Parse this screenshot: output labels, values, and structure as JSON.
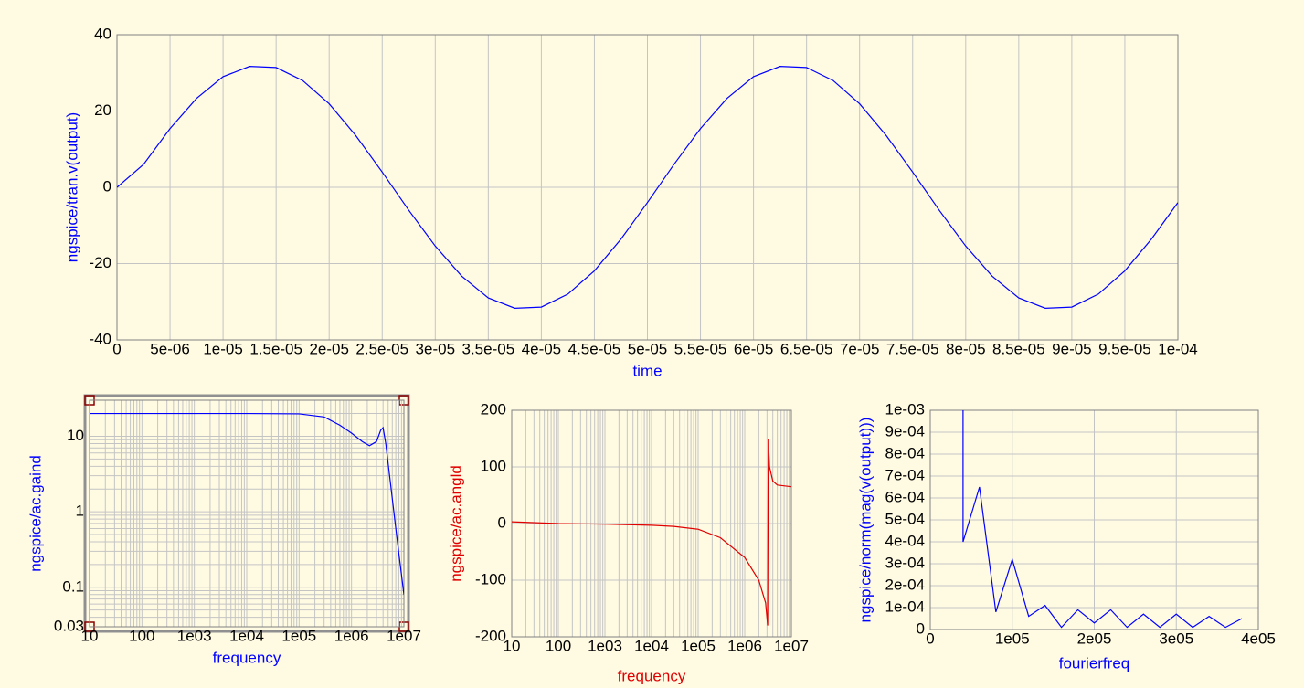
{
  "chart_data": [
    {
      "type": "line",
      "xlabel": "time",
      "ylabel": "ngspice/tran.v(output)",
      "color": "#0000ff",
      "x": [
        0,
        2.5e-06,
        5e-06,
        7.5e-06,
        1e-05,
        1.25e-05,
        1.5e-05,
        1.75e-05,
        2e-05,
        2.25e-05,
        2.5e-05,
        2.75e-05,
        3e-05,
        3.25e-05,
        3.5e-05,
        3.75e-05,
        4e-05,
        4.25e-05,
        4.5e-05,
        4.75e-05,
        5e-05,
        5.25e-05,
        5.5e-05,
        5.75e-05,
        6e-05,
        6.25e-05,
        6.5e-05,
        6.75e-05,
        7e-05,
        7.25e-05,
        7.5e-05,
        7.75e-05,
        8e-05,
        8.25e-05,
        8.5e-05,
        8.75e-05,
        9e-05,
        9.25e-05,
        9.5e-05,
        9.75e-05,
        0.0001
      ],
      "values": [
        0,
        6.0,
        15.4,
        23.3,
        29.0,
        31.7,
        31.4,
        28.0,
        21.9,
        13.6,
        4.0,
        -6.0,
        -15.4,
        -23.3,
        -29.0,
        -31.7,
        -31.4,
        -28.0,
        -21.9,
        -13.6,
        -4.0,
        6.0,
        15.4,
        23.3,
        29.0,
        31.7,
        31.4,
        28.0,
        21.9,
        13.6,
        4.0,
        -6.0,
        -15.4,
        -23.3,
        -29.0,
        -31.7,
        -31.4,
        -28.0,
        -21.9,
        -13.6,
        -4.0
      ],
      "xlim": [
        0,
        0.0001
      ],
      "xticks": [
        0,
        {
          "value": 5e-06,
          "label": "5e-06"
        },
        {
          "value": 1e-05,
          "label": "1e-05"
        },
        {
          "value": 1.5e-05,
          "label": "1.5e-05"
        },
        {
          "value": 2e-05,
          "label": "2e-05"
        },
        {
          "value": 2.5e-05,
          "label": "2.5e-05"
        },
        {
          "value": 3e-05,
          "label": "3e-05"
        },
        {
          "value": 3.5e-05,
          "label": "3.5e-05"
        },
        {
          "value": 4e-05,
          "label": "4e-05"
        },
        {
          "value": 4.5e-05,
          "label": "4.5e-05"
        },
        {
          "value": 5e-05,
          "label": "5e-05"
        },
        {
          "value": 5.5e-05,
          "label": "5.5e-05"
        },
        {
          "value": 6e-05,
          "label": "6e-05"
        },
        {
          "value": 6.5e-05,
          "label": "6.5e-05"
        },
        {
          "value": 7e-05,
          "label": "7e-05"
        },
        {
          "value": 7.5e-05,
          "label": "7.5e-05"
        },
        {
          "value": 8e-05,
          "label": "8e-05"
        },
        {
          "value": 8.5e-05,
          "label": "8.5e-05"
        },
        {
          "value": 9e-05,
          "label": "9e-05"
        },
        {
          "value": 9.5e-05,
          "label": "9.5e-05"
        },
        {
          "value": 0.0001,
          "label": "1e-04"
        }
      ],
      "ylim": [
        -40,
        40
      ],
      "yticks": [
        -40,
        -20,
        0,
        20,
        40
      ],
      "grid": true
    },
    {
      "type": "line",
      "xlabel": "frequency",
      "ylabel": "ngspice/ac.gaind",
      "color": "#0000ff",
      "xlog": true,
      "ylog": true,
      "x": [
        10,
        10000,
        100000,
        300000,
        600000,
        1000000,
        1600000,
        2200000,
        3000000,
        3600000,
        4000000,
        4500000,
        5500000,
        7000000,
        10000000
      ],
      "values": [
        20,
        20,
        19.8,
        18,
        14,
        11,
        8.5,
        7.5,
        8.5,
        12,
        13,
        8,
        2.5,
        0.6,
        0.08
      ],
      "xlim": [
        10,
        10000000
      ],
      "xticks": [
        10,
        100,
        {
          "value": 1000,
          "label": "1e03"
        },
        {
          "value": 10000,
          "label": "1e04"
        },
        {
          "value": 100000,
          "label": "1e05"
        },
        {
          "value": 1000000,
          "label": "1e06"
        },
        {
          "value": 10000000,
          "label": "1e07"
        }
      ],
      "ylim": [
        0.03,
        30
      ],
      "yticks": [
        0.03,
        0.1,
        1,
        10
      ],
      "grid": true
    },
    {
      "type": "line",
      "xlabel": "frequency",
      "ylabel": "ngspice/ac.angld",
      "color": "#e00000",
      "xlog": true,
      "x": [
        10,
        100,
        1000,
        10000,
        30000,
        100000,
        300000,
        1000000,
        2000000,
        2800000,
        3100000,
        3200000,
        3400000,
        4000000,
        5000000,
        10000000
      ],
      "values": [
        3,
        0,
        -1,
        -3,
        -5,
        -10,
        -25,
        -60,
        -100,
        -140,
        -180,
        150,
        100,
        75,
        68,
        65
      ],
      "xlim": [
        10,
        10000000
      ],
      "xticks": [
        10,
        100,
        {
          "value": 1000,
          "label": "1e03"
        },
        {
          "value": 10000,
          "label": "1e04"
        },
        {
          "value": 100000,
          "label": "1e05"
        },
        {
          "value": 1000000,
          "label": "1e06"
        },
        {
          "value": 10000000,
          "label": "1e07"
        }
      ],
      "ylim": [
        -200,
        200
      ],
      "yticks": [
        -200,
        -100,
        0,
        100,
        200
      ],
      "grid": true
    },
    {
      "type": "line",
      "xlabel": "fourierfreq",
      "ylabel": "ngspice/norm(mag(v(output)))",
      "color": "#0000ff",
      "x": [
        40000,
        40000,
        60000,
        80000,
        100000,
        120000,
        140000,
        160000,
        180000,
        200000,
        220000,
        240000,
        260000,
        280000,
        300000,
        320000,
        340000,
        360000,
        380000
      ],
      "values": [
        0.001,
        0.0004,
        0.00065,
        8e-05,
        0.00032,
        6e-05,
        0.00011,
        1e-05,
        9e-05,
        3e-05,
        9e-05,
        1e-05,
        7e-05,
        1e-05,
        7e-05,
        1e-05,
        6e-05,
        1e-05,
        5e-05
      ],
      "xlim": [
        0,
        400000
      ],
      "xticks": [
        0,
        {
          "value": 100000,
          "label": "1e05"
        },
        {
          "value": 200000,
          "label": "2e05"
        },
        {
          "value": 300000,
          "label": "3e05"
        },
        {
          "value": 400000,
          "label": "4e05"
        }
      ],
      "ylim": [
        0,
        0.001
      ],
      "yticks": [
        0,
        {
          "value": 0.0001,
          "label": "1e-04"
        },
        {
          "value": 0.0002,
          "label": "2e-04"
        },
        {
          "value": 0.0003,
          "label": "3e-04"
        },
        {
          "value": 0.0004,
          "label": "4e-04"
        },
        {
          "value": 0.0005,
          "label": "5e-04"
        },
        {
          "value": 0.0006,
          "label": "6e-04"
        },
        {
          "value": 0.0007,
          "label": "7e-04"
        },
        {
          "value": 0.0008,
          "label": "8e-04"
        },
        {
          "value": 0.0009,
          "label": "9e-04"
        },
        {
          "value": 0.001,
          "label": "1e-03"
        }
      ],
      "grid": true
    }
  ]
}
